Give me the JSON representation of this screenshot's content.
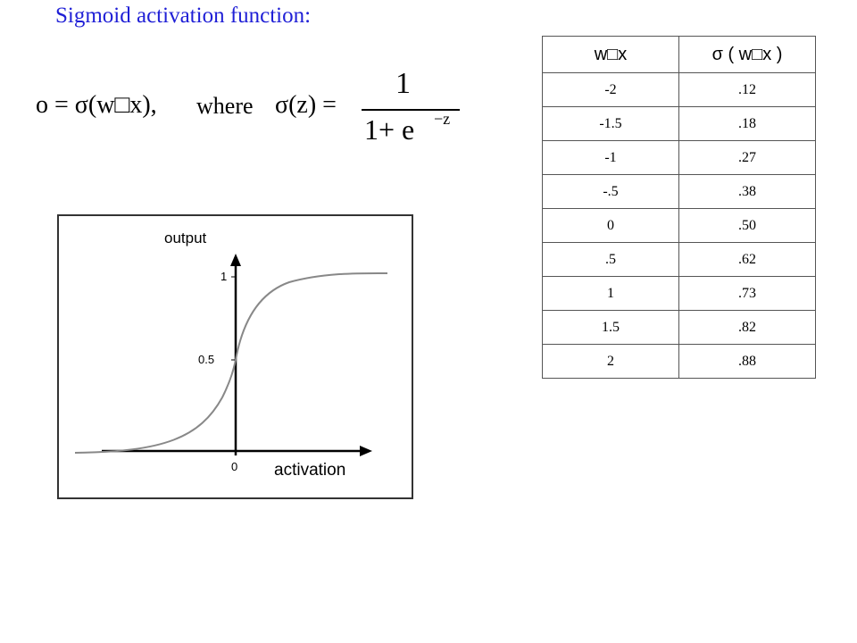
{
  "title": "Sigmoid activation function:",
  "formula": {
    "lhs": "o = σ(w□x),",
    "where": "where",
    "sigma_z": "σ(z) =",
    "numerator": "1",
    "denominator": "1+ e",
    "exponent": "−z"
  },
  "graph": {
    "y_label": "output",
    "x_label": "activation",
    "tick_1": "1",
    "tick_half": "0.5",
    "tick_0": "0"
  },
  "table": {
    "header": [
      "w□x",
      "σ ( w□x )"
    ],
    "rows": [
      [
        "-2",
        ".12"
      ],
      [
        "-1.5",
        ".18"
      ],
      [
        "-1",
        ".27"
      ],
      [
        "-.5",
        ".38"
      ],
      [
        "0",
        ".50"
      ],
      [
        ".5",
        ".62"
      ],
      [
        "1",
        ".73"
      ],
      [
        "1.5",
        ".82"
      ],
      [
        "2",
        ".88"
      ]
    ]
  }
}
